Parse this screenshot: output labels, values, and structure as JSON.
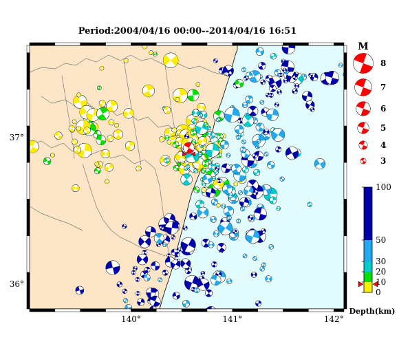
{
  "title": "Period:2004/04/16 00:00--2014/04/16 16:51",
  "map": {
    "lon_range": [
      139.0,
      142.1
    ],
    "lat_range": [
      35.83,
      37.63
    ],
    "lon_ticks": [
      {
        "value": 140,
        "label": "140°"
      },
      {
        "value": 141,
        "label": "141°"
      },
      {
        "value": 142,
        "label": "142°"
      }
    ],
    "lat_ticks": [
      {
        "value": 36,
        "label": "36°"
      },
      {
        "value": 37,
        "label": "37°"
      }
    ],
    "colors": {
      "land": "#fde6c8",
      "sea": "#e2fbfd",
      "border": "#7a7a7a",
      "coast": "#000000"
    },
    "target_event": {
      "lon": 140.57,
      "lat": 36.93,
      "color": "#ff0000"
    }
  },
  "legend_magnitude": {
    "title": "M",
    "items": [
      {
        "label": "8",
        "m": 8
      },
      {
        "label": "7",
        "m": 7
      },
      {
        "label": "6",
        "m": 6
      },
      {
        "label": "5",
        "m": 5
      },
      {
        "label": "4",
        "m": 4
      },
      {
        "label": "3",
        "m": 3
      }
    ],
    "color": "#ff0000"
  },
  "legend_depth": {
    "title": "Depth(km)",
    "ticks": [
      {
        "label": "100",
        "depth": 100
      },
      {
        "label": "50",
        "depth": 50
      },
      {
        "label": "30",
        "depth": 30
      },
      {
        "label": "20",
        "depth": 20
      },
      {
        "label": "10",
        "depth": 10
      },
      {
        "label": "0",
        "depth": 0
      }
    ],
    "bands": [
      {
        "from": 0,
        "to": 10,
        "color": "#ffee00"
      },
      {
        "from": 10,
        "to": 20,
        "color": "#00e000"
      },
      {
        "from": 20,
        "to": 30,
        "color": "#00cccc"
      },
      {
        "from": 30,
        "to": 50,
        "color": "#22aaee"
      },
      {
        "from": 50,
        "to": 100,
        "color": "#0000aa"
      }
    ],
    "marker_depth": 8
  }
}
